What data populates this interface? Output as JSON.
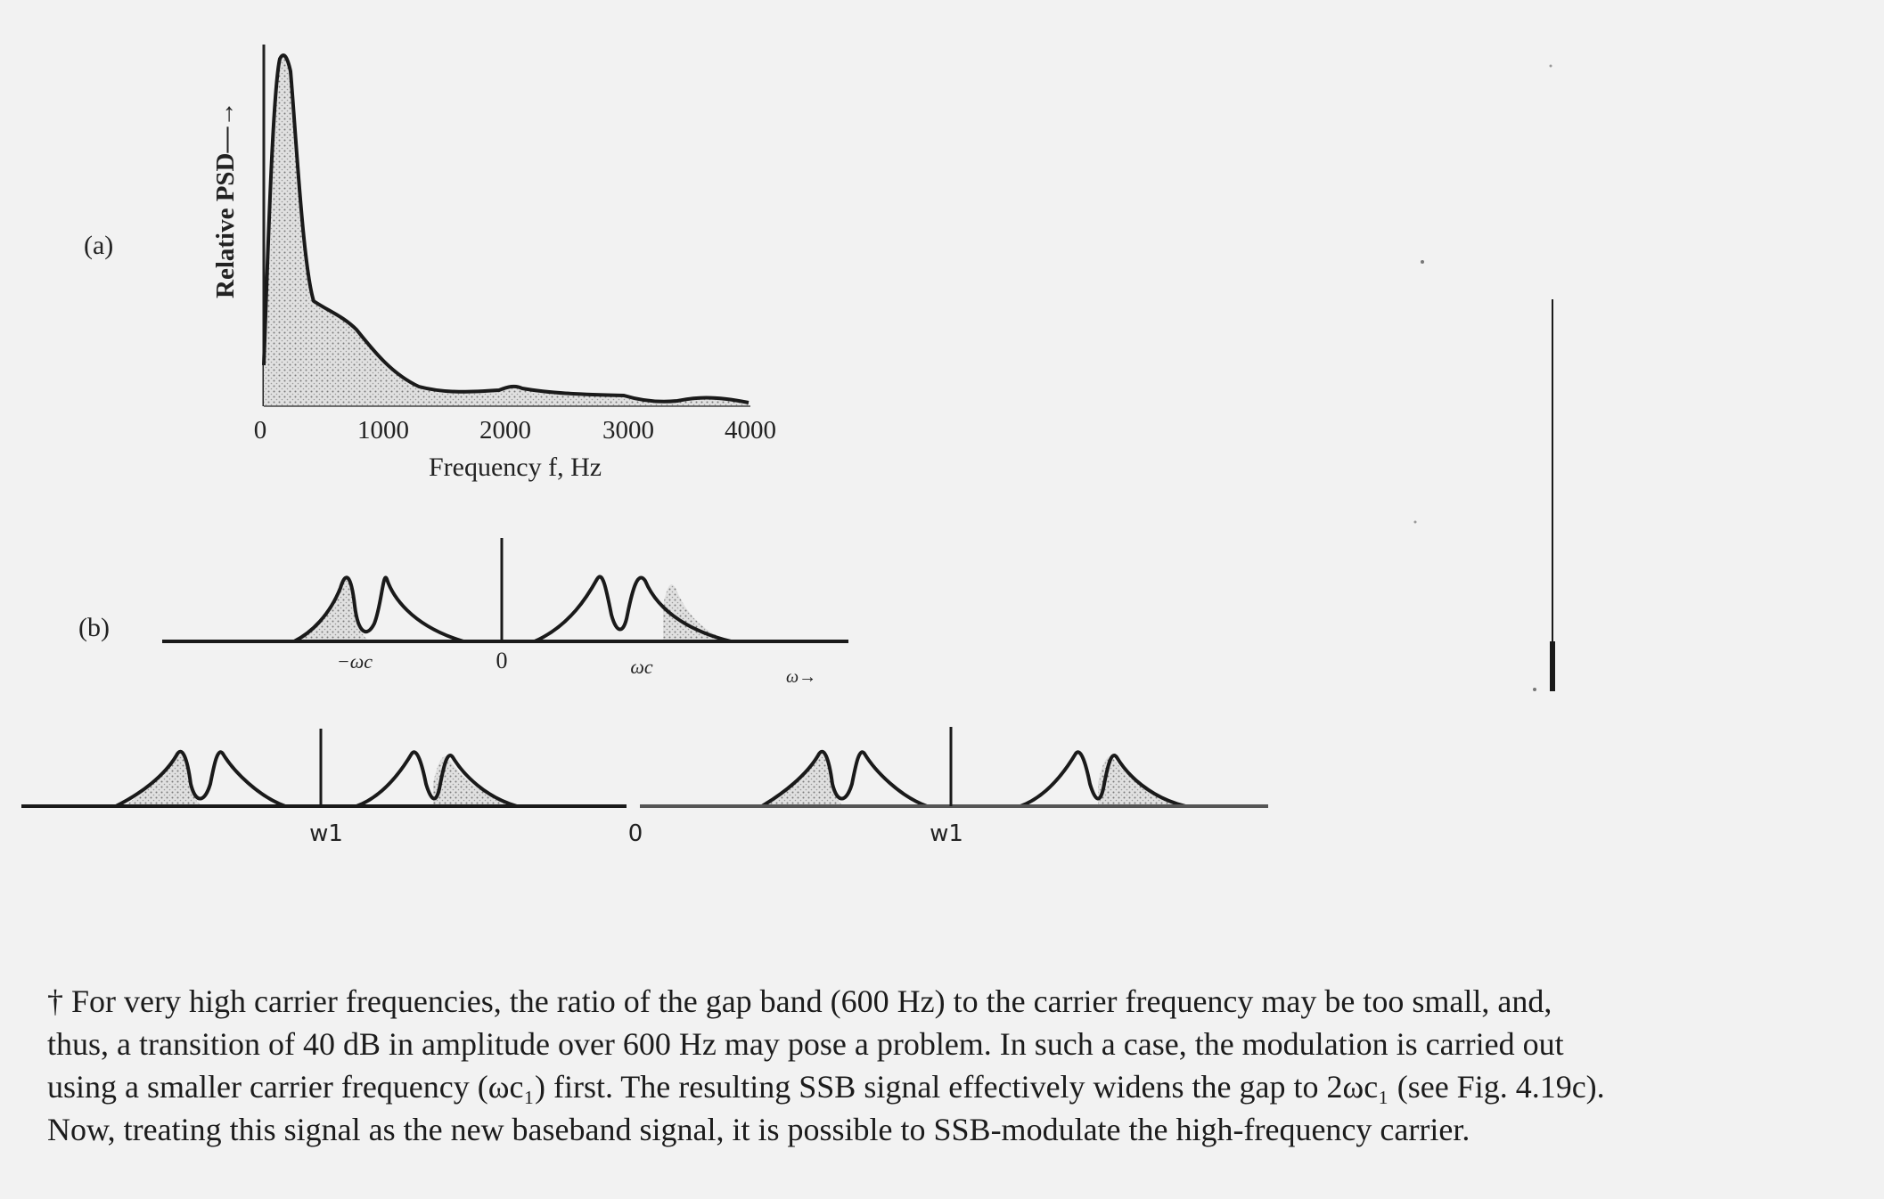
{
  "panel_a": {
    "label": "(a)",
    "ylabel": "Relative PSD—→",
    "xlabel": "Frequency f, Hz",
    "xticks": [
      "0",
      "1000",
      "2000",
      "3000",
      "4000"
    ]
  },
  "panel_b": {
    "label": "(b)",
    "ticks": [
      "−ωc",
      "0",
      "ωc"
    ],
    "axis_label": "ω→"
  },
  "panel_c": {
    "labels": [
      "w1",
      "0",
      "w1"
    ]
  },
  "chart_data": {
    "type": "area",
    "xlabel": "Frequency f, Hz",
    "ylabel": "Relative PSD",
    "xlim": [
      0,
      4000
    ],
    "x": [
      0,
      100,
      200,
      300,
      400,
      500,
      700,
      1000,
      1500,
      2000,
      2500,
      3000,
      3500,
      4000
    ],
    "values": [
      0.15,
      0.85,
      1.0,
      0.8,
      0.4,
      0.3,
      0.2,
      0.08,
      0.02,
      0.03,
      0.015,
      0.005,
      0.02,
      0.005
    ]
  },
  "footnote": {
    "lines": [
      "† For very high carrier frequencies, the ratio of the gap band (600 Hz) to the carrier frequency may be too small, and,",
      "thus, a transition of 40 dB in amplitude over 600 Hz may pose a problem. In such a case, the modulation is carried out",
      "using a smaller carrier frequency (ωc₁) first. The resulting SSB signal effectively widens the gap to 2ωc₁ (see Fig. 4.19c).",
      "Now, treating this signal as the new baseband signal, it is possible to SSB-modulate the high-frequency carrier."
    ]
  }
}
